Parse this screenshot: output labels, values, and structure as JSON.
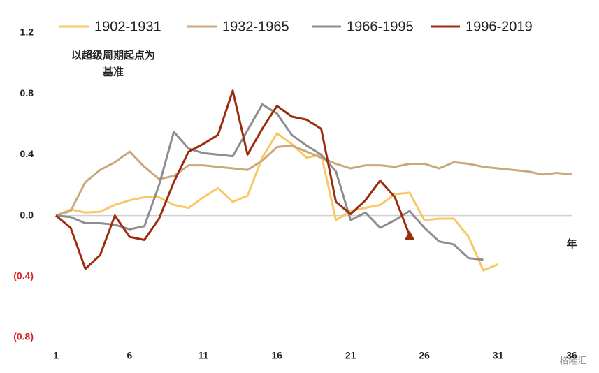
{
  "chart_data": {
    "type": "line",
    "annotation_lines": [
      "以超级周期起点为",
      "基准"
    ],
    "x_unit": "年",
    "watermark": "格隆汇",
    "x": [
      1,
      2,
      3,
      4,
      5,
      6,
      7,
      8,
      9,
      10,
      11,
      12,
      13,
      14,
      15,
      16,
      17,
      18,
      19,
      20,
      21,
      22,
      23,
      24,
      25,
      26,
      27,
      28,
      29,
      30,
      31,
      32,
      33,
      34,
      35,
      36
    ],
    "xlim": [
      1,
      36
    ],
    "xticks": [
      1,
      6,
      11,
      16,
      21,
      26,
      31,
      36
    ],
    "ylim": [
      -0.8,
      1.2
    ],
    "yticks": [
      {
        "value": -0.8,
        "label": "(0.8)"
      },
      {
        "value": -0.4,
        "label": "(0.4)"
      },
      {
        "value": 0,
        "label": "0.0"
      },
      0.4,
      0.8,
      1.2
    ],
    "negative_tick_color": "#e02020",
    "zero_line_color": "#d0d0d0",
    "series": [
      {
        "name": "1902-1931",
        "color": "#f7c865",
        "values": [
          0,
          0.04,
          0.02,
          0.025,
          0.07,
          0.1,
          0.12,
          0.12,
          0.07,
          0.05,
          0.12,
          0.18,
          0.09,
          0.13,
          0.38,
          0.54,
          0.47,
          0.38,
          0.4,
          -0.03,
          0.03,
          0.05,
          0.07,
          0.14,
          0.15,
          -0.03,
          -0.02,
          -0.02,
          -0.14,
          -0.36,
          -0.32,
          null,
          null,
          null,
          null,
          null
        ]
      },
      {
        "name": "1932-1965",
        "color": "#c9a97c",
        "values": [
          0,
          0.03,
          0.22,
          0.3,
          0.35,
          0.42,
          0.32,
          0.24,
          0.26,
          0.33,
          0.33,
          0.32,
          0.31,
          0.3,
          0.36,
          0.45,
          0.46,
          0.42,
          0.38,
          0.34,
          0.31,
          0.33,
          0.33,
          0.32,
          0.34,
          0.34,
          0.31,
          0.35,
          0.34,
          0.32,
          0.31,
          0.3,
          0.29,
          0.27,
          0.28,
          0.27
        ]
      },
      {
        "name": "1966-1995",
        "color": "#8e8e8e",
        "values": [
          0,
          -0.01,
          -0.05,
          -0.05,
          -0.06,
          -0.09,
          -0.07,
          0.2,
          0.55,
          0.44,
          0.41,
          0.4,
          0.39,
          0.56,
          0.73,
          0.67,
          0.53,
          0.46,
          0.4,
          0.29,
          -0.03,
          0.02,
          -0.08,
          -0.03,
          0.03,
          -0.08,
          -0.17,
          -0.19,
          -0.28,
          -0.29,
          null,
          null,
          null,
          null,
          null,
          null
        ]
      },
      {
        "name": "1996-2019",
        "color": "#9b2c0e",
        "marker": "triangle",
        "values": [
          0,
          -0.08,
          -0.35,
          -0.26,
          0,
          -0.14,
          -0.16,
          -0.02,
          0.22,
          0.42,
          0.47,
          0.53,
          0.82,
          0.4,
          0.57,
          0.72,
          0.65,
          0.63,
          0.57,
          0.09,
          0.01,
          0.1,
          0.23,
          0.12,
          -0.13,
          null,
          null,
          null,
          null,
          null,
          null,
          null,
          null,
          null,
          null,
          null
        ]
      }
    ]
  }
}
